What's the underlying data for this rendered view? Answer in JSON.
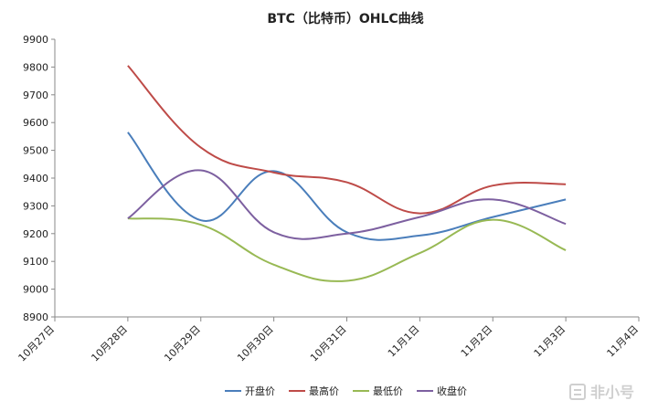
{
  "chart_data": {
    "type": "line",
    "title": "BTC（比特币）OHLC曲线",
    "xlabel": "",
    "ylabel": "",
    "categories": [
      "10月27日",
      "10月28日",
      "10月29日",
      "10月30日",
      "10月31日",
      "11月1日",
      "11月2日",
      "11月3日",
      "11月4日"
    ],
    "ylim": [
      8900,
      9900
    ],
    "yticks": [
      8900,
      9000,
      9100,
      9200,
      9300,
      9400,
      9500,
      9600,
      9700,
      9800,
      9900
    ],
    "grid": false,
    "legend_position": "bottom",
    "series": [
      {
        "name": "开盘价",
        "color": "#4a7ebb",
        "values": [
          null,
          9565,
          9248,
          9425,
          9205,
          9193,
          9260,
          9323,
          null
        ]
      },
      {
        "name": "最高价",
        "color": "#be4b48",
        "values": [
          null,
          9805,
          9510,
          9420,
          9385,
          9273,
          9373,
          9378,
          null
        ]
      },
      {
        "name": "最低价",
        "color": "#98b954",
        "values": [
          null,
          9255,
          9232,
          9088,
          9030,
          9130,
          9250,
          9140,
          null
        ]
      },
      {
        "name": "收盘价",
        "color": "#7d60a0",
        "values": [
          null,
          9255,
          9428,
          9205,
          9200,
          9260,
          9323,
          9235,
          null
        ]
      }
    ]
  },
  "watermark": {
    "text": "非小号",
    "icon": "feixiaohao-logo-icon"
  }
}
